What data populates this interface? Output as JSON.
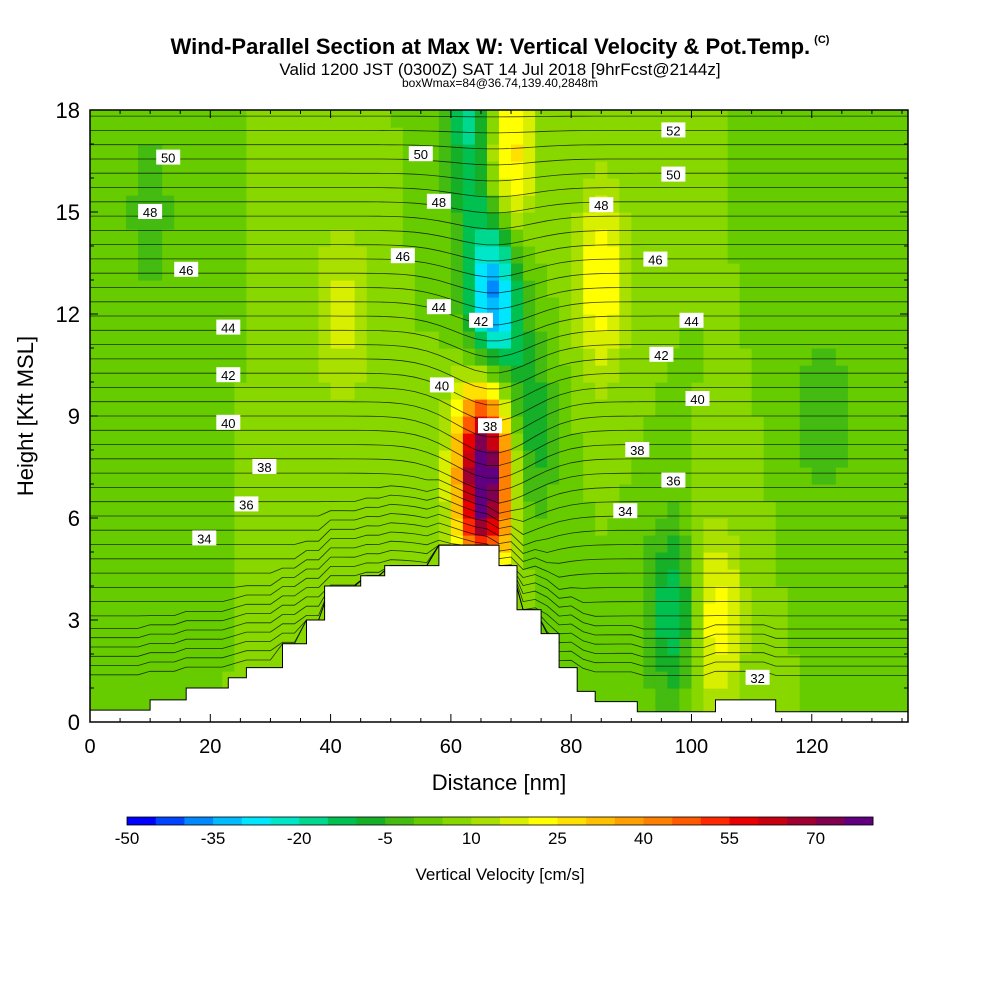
{
  "header": {
    "title": "Wind-Parallel Section at Max W: Vertical Velocity & Pot.Temp.",
    "title_mark": "(C)",
    "subtitle": "Valid 1200 JST (0300Z) SAT 14 Jul 2018 [9hrFcst@2144z]",
    "subtitle2": "boxWmax=84@36.74,139.40,2848m"
  },
  "chart_data": {
    "type": "heatmap",
    "xlabel": "Distance [nm]",
    "ylabel": "Height [Kft MSL]",
    "xlim": [
      0,
      136
    ],
    "ylim": [
      0,
      18
    ],
    "x_ticks": [
      0,
      20,
      40,
      60,
      80,
      100,
      120
    ],
    "y_ticks": [
      0,
      3,
      6,
      9,
      12,
      15,
      18
    ],
    "x_tick_labels": [
      "0",
      "20",
      "40",
      "60",
      "80",
      "100",
      "120"
    ],
    "y_tick_labels": [
      "0",
      "3",
      "6",
      "9",
      "12",
      "15",
      "18"
    ],
    "background_value": 5,
    "terrain": [
      [
        0,
        0.35
      ],
      [
        10,
        0.35
      ],
      [
        10,
        0.65
      ],
      [
        16,
        0.65
      ],
      [
        16,
        1.0
      ],
      [
        23,
        1.0
      ],
      [
        23,
        1.3
      ],
      [
        26,
        1.3
      ],
      [
        26,
        1.6
      ],
      [
        32,
        1.6
      ],
      [
        32,
        2.3
      ],
      [
        36,
        2.3
      ],
      [
        36,
        3.0
      ],
      [
        39,
        3.0
      ],
      [
        39,
        4.0
      ],
      [
        45,
        4.0
      ],
      [
        45,
        4.3
      ],
      [
        49,
        4.3
      ],
      [
        49,
        4.6
      ],
      [
        58,
        4.6
      ],
      [
        58,
        5.2
      ],
      [
        68,
        5.2
      ],
      [
        68,
        4.6
      ],
      [
        71,
        4.6
      ],
      [
        71,
        3.3
      ],
      [
        75,
        3.3
      ],
      [
        75,
        2.6
      ],
      [
        78,
        2.6
      ],
      [
        78,
        1.6
      ],
      [
        81,
        1.6
      ],
      [
        81,
        0.9
      ],
      [
        84,
        0.9
      ],
      [
        84,
        0.6
      ],
      [
        91,
        0.6
      ],
      [
        91,
        0.3
      ],
      [
        104,
        0.3
      ],
      [
        104,
        0.65
      ],
      [
        114,
        0.65
      ],
      [
        114,
        0.3
      ],
      [
        136,
        0.3
      ]
    ],
    "vertical_velocity_features": [
      {
        "kind": "updraft",
        "x": 65.5,
        "y": 7.3,
        "peak": 84
      },
      {
        "kind": "updraft",
        "x": 69,
        "y": 16.5,
        "peak": 30
      },
      {
        "kind": "updraft",
        "x": 85,
        "y": 13,
        "peak": 20
      },
      {
        "kind": "updraft",
        "x": 104,
        "y": 3,
        "peak": 20
      },
      {
        "kind": "updraft",
        "x": 42,
        "y": 12,
        "peak": 12
      },
      {
        "kind": "downdraft",
        "x": 67,
        "y": 12.5,
        "peak": -45
      },
      {
        "kind": "downdraft",
        "x": 64,
        "y": 17.5,
        "peak": -25
      },
      {
        "kind": "downdraft",
        "x": 97,
        "y": 3.2,
        "peak": -20
      },
      {
        "kind": "downdraft",
        "x": 73,
        "y": 8.5,
        "peak": -15
      },
      {
        "kind": "downdraft",
        "x": 10,
        "y": 15,
        "peak": -8
      },
      {
        "kind": "downdraft",
        "x": 122,
        "y": 9,
        "peak": -10
      }
    ],
    "pot_temp_contour_labels": [
      {
        "value": "52",
        "x": 97,
        "y": 17.4
      },
      {
        "value": "50",
        "x": 13,
        "y": 16.6
      },
      {
        "value": "50",
        "x": 55,
        "y": 16.7
      },
      {
        "value": "50",
        "x": 97,
        "y": 16.1
      },
      {
        "value": "48",
        "x": 10,
        "y": 15.0
      },
      {
        "value": "48",
        "x": 58,
        "y": 15.3
      },
      {
        "value": "48",
        "x": 85,
        "y": 15.2
      },
      {
        "value": "46",
        "x": 16,
        "y": 13.3
      },
      {
        "value": "46",
        "x": 52,
        "y": 13.7
      },
      {
        "value": "46",
        "x": 94,
        "y": 13.6
      },
      {
        "value": "44",
        "x": 23,
        "y": 11.6
      },
      {
        "value": "44",
        "x": 58,
        "y": 12.2
      },
      {
        "value": "44",
        "x": 100,
        "y": 11.8
      },
      {
        "value": "42",
        "x": 23,
        "y": 10.2
      },
      {
        "value": "42",
        "x": 65,
        "y": 11.8
      },
      {
        "value": "42",
        "x": 95,
        "y": 10.8
      },
      {
        "value": "40",
        "x": 23,
        "y": 8.8
      },
      {
        "value": "40",
        "x": 58.5,
        "y": 9.9
      },
      {
        "value": "40",
        "x": 101,
        "y": 9.5
      },
      {
        "value": "38",
        "x": 29,
        "y": 7.5
      },
      {
        "value": "38",
        "x": 66.5,
        "y": 8.7
      },
      {
        "value": "38",
        "x": 91,
        "y": 8.0
      },
      {
        "value": "36",
        "x": 26,
        "y": 6.4
      },
      {
        "value": "36",
        "x": 97,
        "y": 7.1
      },
      {
        "value": "34",
        "x": 19,
        "y": 5.4
      },
      {
        "value": "34",
        "x": 89,
        "y": 6.2
      },
      {
        "value": "32",
        "x": 111,
        "y": 1.3
      }
    ],
    "colorbar": {
      "label": "Vertical Velocity [cm/s]",
      "tick_labels": [
        "-50",
        "-35",
        "-20",
        "-5",
        "10",
        "25",
        "40",
        "55",
        "70"
      ],
      "levels": [
        -50,
        -45,
        -40,
        -35,
        -30,
        -25,
        -20,
        -15,
        -10,
        -5,
        0,
        5,
        10,
        15,
        20,
        25,
        30,
        35,
        40,
        45,
        50,
        55,
        60,
        65,
        70,
        75
      ],
      "colors": [
        "#0000ff",
        "#0044ff",
        "#0088ff",
        "#00bbff",
        "#00e6ff",
        "#00e6c8",
        "#00d890",
        "#00c050",
        "#16b028",
        "#44bb10",
        "#66cc00",
        "#88d800",
        "#aae000",
        "#d8f000",
        "#ffff00",
        "#ffe000",
        "#ffc000",
        "#ffa000",
        "#ff8000",
        "#ff5a00",
        "#ff2800",
        "#e80000",
        "#c80010",
        "#a00030",
        "#800050",
        "#600080"
      ]
    }
  }
}
